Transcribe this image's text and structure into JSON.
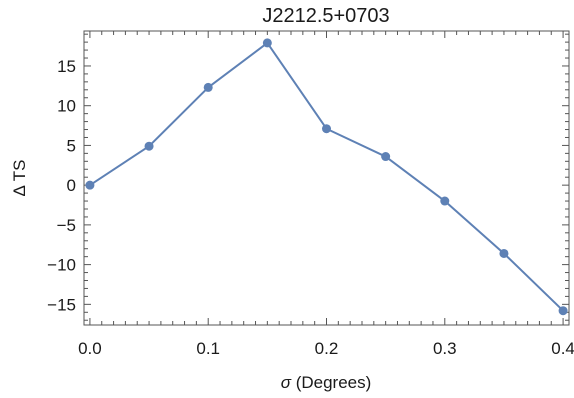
{
  "chart_data": {
    "type": "line",
    "title": "J2212.5+0703",
    "xlabel_symbol": "σ",
    "xlabel_text": " (Degrees)",
    "ylabel": "Δ TS",
    "x": [
      0.0,
      0.05,
      0.1,
      0.15,
      0.2,
      0.25,
      0.3,
      0.35,
      0.4
    ],
    "series": [
      {
        "values": [
          0.0,
          4.9,
          12.3,
          17.9,
          7.1,
          3.6,
          -2.0,
          -8.6,
          -15.8
        ]
      }
    ],
    "xlim": [
      -0.005,
      0.405
    ],
    "ylim": [
      -17.6,
      19.4
    ],
    "xticks": [
      0.0,
      0.1,
      0.2,
      0.3,
      0.4
    ],
    "xtick_labels": [
      "0.0",
      "0.1",
      "0.2",
      "0.3",
      "0.4"
    ],
    "yticks": [
      15,
      10,
      5,
      0,
      -5,
      -10,
      -15
    ],
    "ytick_labels": [
      "15",
      "10",
      "5",
      "0",
      "−5",
      "−10",
      "−15"
    ],
    "grid": false,
    "line_color": "#5E81B5",
    "marker_color": "#5E81B5"
  }
}
